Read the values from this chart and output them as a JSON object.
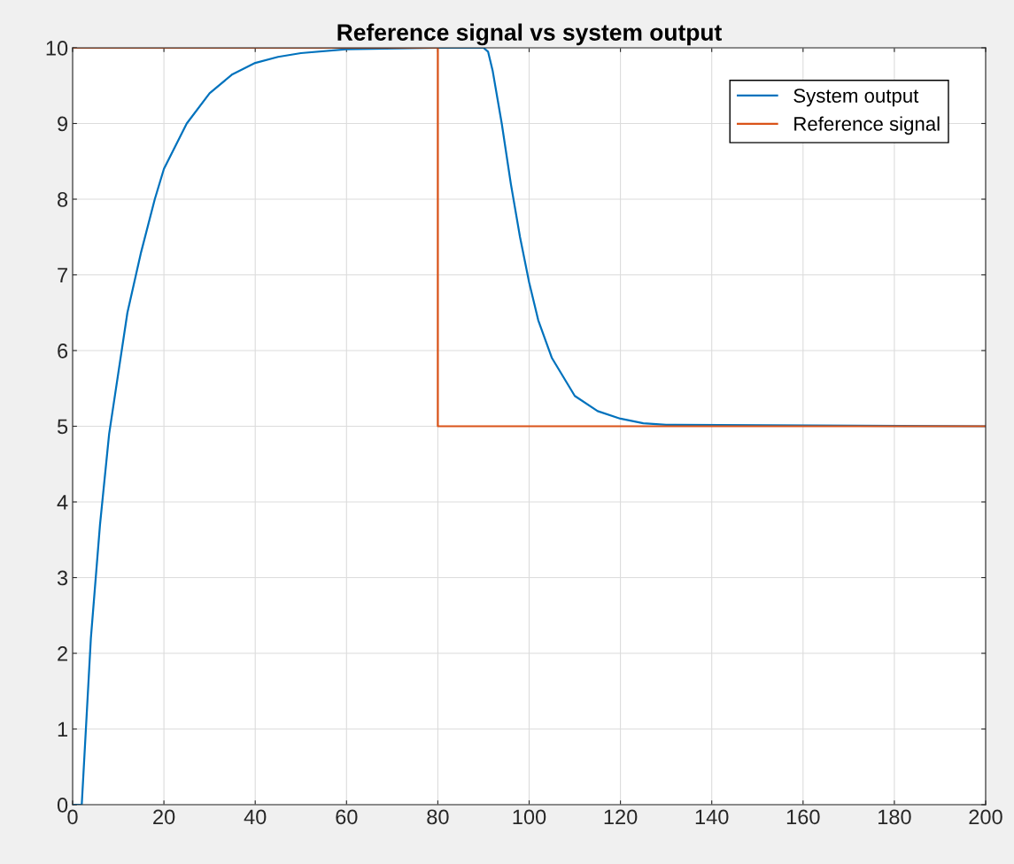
{
  "chart_data": {
    "type": "line",
    "title": "Reference signal vs system output",
    "xlim": [
      0,
      200
    ],
    "xticks": [
      0,
      20,
      40,
      60,
      80,
      100,
      120,
      140,
      160,
      180,
      200
    ],
    "ylim": [
      0,
      10
    ],
    "yticks": [
      0,
      1,
      2,
      3,
      4,
      5,
      6,
      7,
      8,
      9,
      10
    ],
    "grid": true,
    "legend": "top right",
    "marker": "none",
    "line_style": "solid",
    "series": [
      {
        "name": "System output",
        "color": "#0072bd",
        "x": [
          0,
          2,
          4,
          6,
          8,
          10,
          12,
          15,
          18,
          20,
          25,
          30,
          35,
          40,
          45,
          50,
          60,
          80,
          90,
          91,
          92,
          94,
          96,
          98,
          100,
          102,
          105,
          110,
          115,
          120,
          125,
          130,
          200
        ],
        "values": [
          0,
          0,
          2.2,
          3.7,
          4.9,
          5.7,
          6.5,
          7.3,
          8.0,
          8.4,
          9.0,
          9.4,
          9.65,
          9.8,
          9.88,
          9.93,
          9.98,
          10,
          10,
          9.95,
          9.7,
          9.0,
          8.2,
          7.5,
          6.9,
          6.4,
          5.9,
          5.4,
          5.2,
          5.1,
          5.04,
          5.02,
          5.0
        ]
      },
      {
        "name": "Reference signal",
        "color": "#d95319",
        "x": [
          0,
          80,
          80,
          200
        ],
        "values": [
          10,
          10,
          5,
          5
        ]
      }
    ]
  }
}
